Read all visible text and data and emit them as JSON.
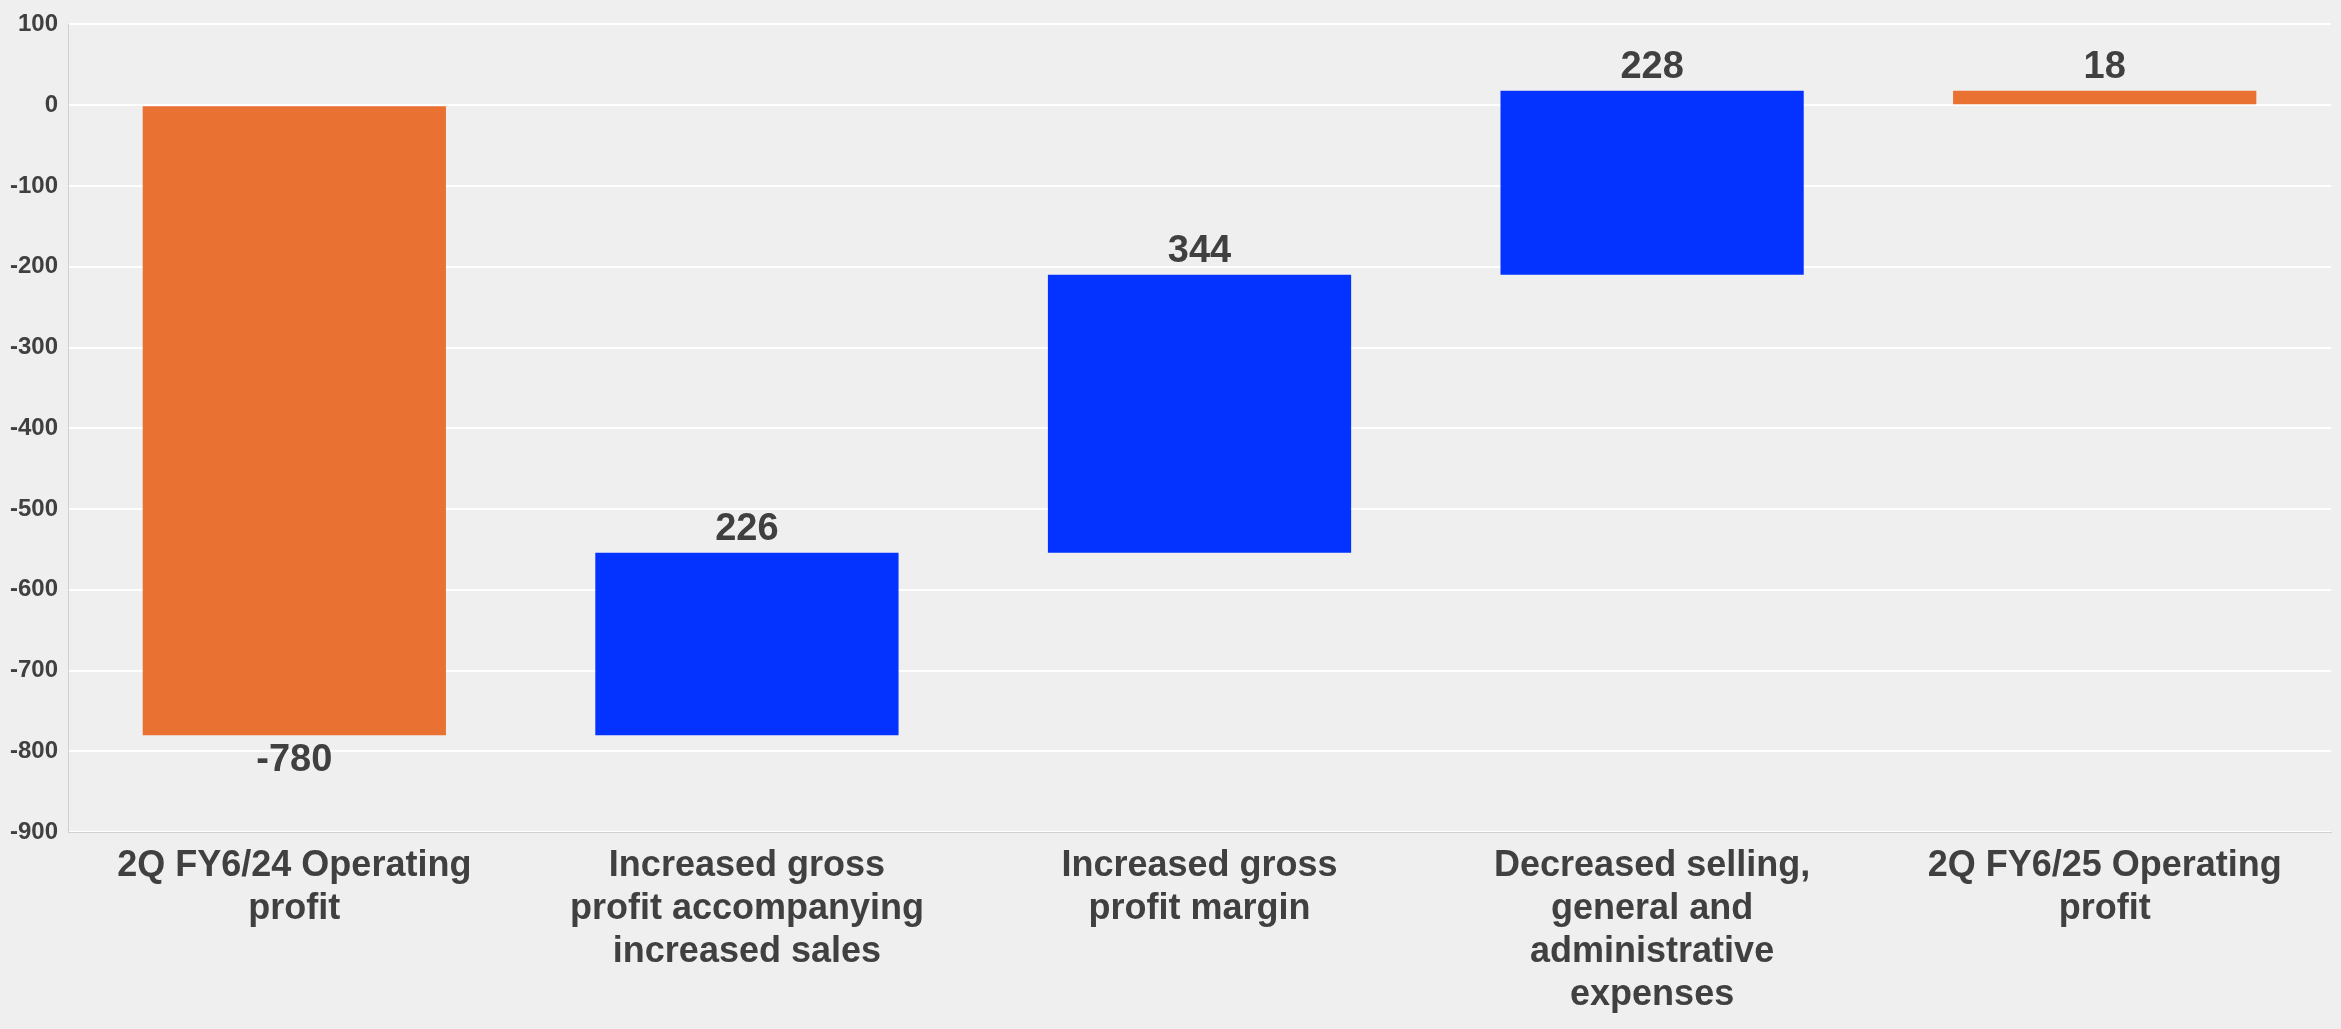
{
  "chart_data": {
    "type": "bar",
    "categories": [
      "2Q FY6/24 Operating profit",
      "Increased gross profit accompanying increased sales",
      "Increased gross profit margin",
      "Decreased selling, general and administrative expenses",
      "2Q FY6/25 Operating profit"
    ],
    "values": [
      -780,
      226,
      344,
      228,
      18
    ],
    "base": [
      0,
      -780,
      -554,
      -210,
      0
    ],
    "colors": [
      "#e97132",
      "#0433ff",
      "#0433ff",
      "#0433ff",
      "#e97132"
    ],
    "ylim": [
      -900,
      100
    ],
    "yticks": [
      -900,
      -800,
      -700,
      -600,
      -500,
      -400,
      -300,
      -200,
      -100,
      0,
      100
    ],
    "grid": "y",
    "legend": false,
    "data_labels": true
  }
}
